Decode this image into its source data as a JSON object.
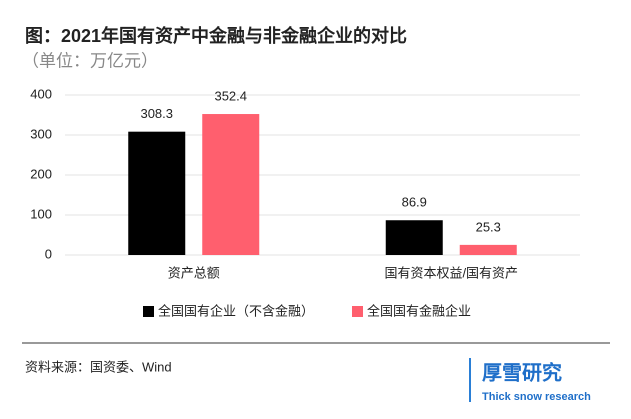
{
  "chart_data": {
    "type": "bar",
    "title": "图：2021年国有资产中金融与非金融企业的对比",
    "subtitle": "（单位：万亿元）",
    "categories": [
      "资产总额",
      "国有资本权益/国有资产"
    ],
    "series": [
      {
        "name": "全国国有企业（不含金融）",
        "color": "#000000",
        "values": [
          308.3,
          86.9
        ]
      },
      {
        "name": "全国国有金融企业",
        "color": "#ff5f6e",
        "values": [
          352.4,
          25.3
        ]
      }
    ],
    "ylim": [
      0,
      400
    ],
    "yticks": [
      0,
      100,
      200,
      300,
      400
    ],
    "grid": true,
    "source": "资料来源：国资委、Wind",
    "brand": {
      "name": "厚雪研究",
      "tagline": "Thick snow research"
    }
  }
}
